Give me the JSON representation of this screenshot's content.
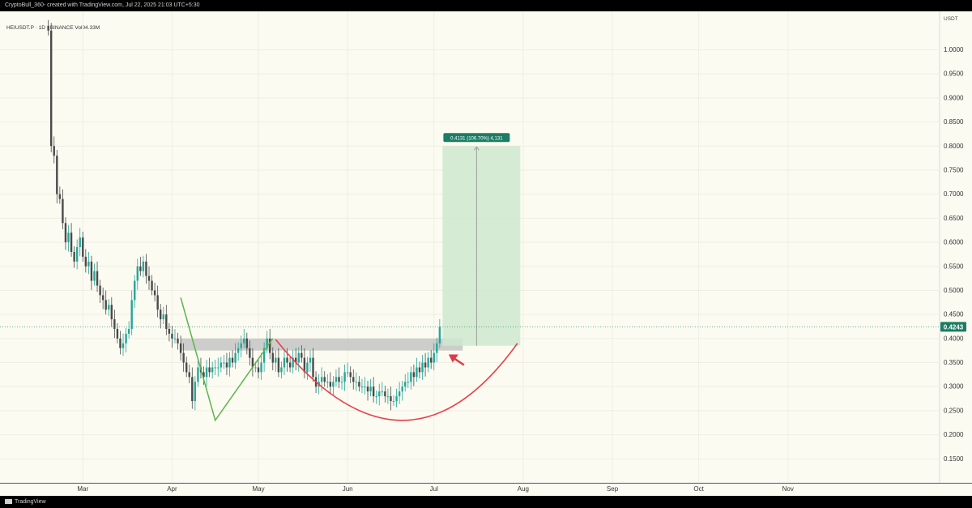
{
  "header": {
    "attribution": "CryptoBull_360- created with TradingView.com, Jul 22, 2025 21:03 UTC+5:30"
  },
  "legend": {
    "symbol_line": "HEIUSDT.P · 1D · BINANCE  Vol94.33M"
  },
  "footer": {
    "logo_text": "TradingView"
  },
  "colors": {
    "up": "#26a69a",
    "down": "#4a4a4a",
    "green_pattern": "#5bb54a",
    "red_curve": "#e8404a",
    "price_label": "#1b7d63",
    "target_box": "#cfe8cf",
    "resistance_box": "#bdbdbd",
    "arrow": "#e03a4a"
  },
  "chart_data": {
    "type": "candlestick",
    "currency_label": "USDT",
    "y_ticks": [
      "1.0000",
      "0.9500",
      "0.9000",
      "0.8500",
      "0.8000",
      "0.7500",
      "0.7000",
      "0.6500",
      "0.6000",
      "0.5500",
      "0.5000",
      "0.4500",
      "0.4000",
      "0.3500",
      "0.3000",
      "0.2500",
      "0.2000",
      "0.1500"
    ],
    "ylim": [
      0.1,
      1.08
    ],
    "x_labels": [
      {
        "label": "Mar",
        "day": 28
      },
      {
        "label": "Apr",
        "day": 59
      },
      {
        "label": "May",
        "day": 89
      },
      {
        "label": "Jun",
        "day": 120
      },
      {
        "label": "Jul",
        "day": 150
      },
      {
        "label": "Aug",
        "day": 181
      },
      {
        "label": "Sep",
        "day": 212
      },
      {
        "label": "Oct",
        "day": 242
      },
      {
        "label": "Nov",
        "day": 273
      }
    ],
    "first_day": 16,
    "closes": [
      1.04,
      0.8,
      0.78,
      0.7,
      0.69,
      0.64,
      0.6,
      0.62,
      0.58,
      0.56,
      0.59,
      0.61,
      0.57,
      0.55,
      0.56,
      0.52,
      0.54,
      0.51,
      0.49,
      0.48,
      0.46,
      0.47,
      0.44,
      0.42,
      0.4,
      0.38,
      0.39,
      0.41,
      0.42,
      0.48,
      0.52,
      0.55,
      0.54,
      0.56,
      0.53,
      0.52,
      0.5,
      0.49,
      0.46,
      0.44,
      0.45,
      0.42,
      0.41,
      0.4,
      0.4,
      0.39,
      0.37,
      0.35,
      0.33,
      0.32,
      0.27,
      0.31,
      0.34,
      0.33,
      0.32,
      0.34,
      0.33,
      0.34,
      0.34,
      0.34,
      0.35,
      0.35,
      0.34,
      0.36,
      0.35,
      0.37,
      0.38,
      0.39,
      0.4,
      0.38,
      0.36,
      0.34,
      0.34,
      0.33,
      0.35,
      0.38,
      0.4,
      0.37,
      0.35,
      0.36,
      0.33,
      0.34,
      0.36,
      0.35,
      0.34,
      0.36,
      0.35,
      0.37,
      0.36,
      0.33,
      0.35,
      0.36,
      0.32,
      0.3,
      0.31,
      0.32,
      0.31,
      0.31,
      0.3,
      0.31,
      0.32,
      0.31,
      0.31,
      0.33,
      0.33,
      0.32,
      0.31,
      0.31,
      0.3,
      0.3,
      0.3,
      0.29,
      0.3,
      0.28,
      0.28,
      0.29,
      0.29,
      0.28,
      0.28,
      0.27,
      0.27,
      0.28,
      0.29,
      0.3,
      0.31,
      0.31,
      0.33,
      0.32,
      0.34,
      0.33,
      0.35,
      0.34,
      0.36,
      0.35,
      0.37,
      0.39,
      0.4243
    ],
    "current_price": "0.4243",
    "resistance_zone": {
      "from": 0.375,
      "to": 0.4
    },
    "target_zone": {
      "from": 0.385,
      "to": 0.8
    },
    "target_label": "0.4131 (106.70%) 4,131",
    "green_pattern_points": [
      [
        62,
        0.485
      ],
      [
        74,
        0.23
      ],
      [
        94,
        0.4
      ]
    ],
    "red_curve": {
      "start": [
        95,
        0.398
      ],
      "bottom": [
        140,
        0.23
      ],
      "end": [
        179,
        0.39
      ]
    }
  }
}
